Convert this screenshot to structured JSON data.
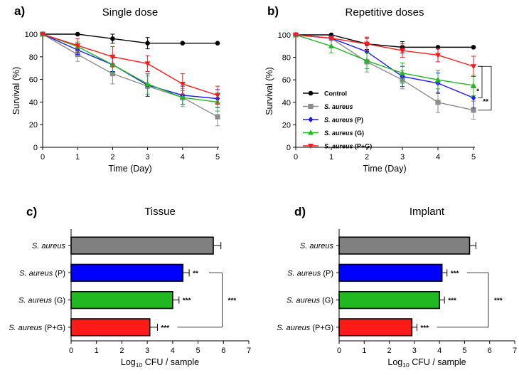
{
  "chart_data": [
    {
      "panel": "a)",
      "type": "line",
      "title": "Single dose",
      "xlabel": "Time (Day)",
      "ylabel": "Survival (%)",
      "x": [
        0,
        1,
        2,
        3,
        4,
        5
      ],
      "xlim": [
        0,
        5
      ],
      "ylim": [
        0,
        100
      ],
      "xticks": [
        "0",
        "1",
        "2",
        "3",
        "4",
        "5"
      ],
      "yticks": [
        "0",
        "20",
        "40",
        "60",
        "80",
        "100"
      ],
      "series": [
        {
          "name": "Control",
          "color": "#000000",
          "marker": "circle",
          "values": [
            100,
            100,
            96,
            92,
            92,
            92
          ],
          "err": [
            0,
            0,
            4,
            5,
            0,
            0
          ]
        },
        {
          "name": "S. aureus",
          "color": "#8c8c8c",
          "marker": "square",
          "values": [
            100,
            82,
            65,
            54,
            44,
            27
          ],
          "err": [
            0,
            6,
            9,
            9,
            8,
            8
          ]
        },
        {
          "name": "S. aureus (P)",
          "color": "#1a1aff",
          "marker": "diamond",
          "values": [
            100,
            86,
            73,
            55,
            46,
            43
          ],
          "err": [
            0,
            4,
            6,
            10,
            8,
            8
          ]
        },
        {
          "name": "S. aureus (G)",
          "color": "#22b822",
          "marker": "triangle-up",
          "values": [
            100,
            89,
            73,
            56,
            44,
            40
          ],
          "err": [
            0,
            4,
            7,
            9,
            6,
            8
          ]
        },
        {
          "name": "S. aureus (P+G)",
          "color": "#ff1a1a",
          "marker": "triangle-down",
          "values": [
            100,
            90,
            80,
            74,
            56,
            46
          ],
          "err": [
            0,
            6,
            9,
            7,
            9,
            8
          ]
        }
      ]
    },
    {
      "panel": "b)",
      "type": "line",
      "title": "Repetitive doses",
      "xlabel": "Time (Day)",
      "ylabel": "Survival (%)",
      "x": [
        0,
        1,
        2,
        3,
        4,
        5
      ],
      "xlim": [
        0,
        5
      ],
      "ylim": [
        0,
        100
      ],
      "xticks": [
        "0",
        "1",
        "2",
        "3",
        "4",
        "5"
      ],
      "yticks": [
        "0",
        "20",
        "40",
        "60",
        "80",
        "100"
      ],
      "series": [
        {
          "name": "Control",
          "color": "#000000",
          "marker": "circle",
          "values": [
            100,
            100,
            92,
            89,
            89,
            89
          ],
          "err": [
            0,
            0,
            5,
            5,
            0,
            0
          ]
        },
        {
          "name": "S. aureus",
          "color": "#8c8c8c",
          "marker": "square",
          "values": [
            100,
            97,
            76,
            60,
            40,
            33
          ],
          "err": [
            0,
            0,
            9,
            8,
            9,
            8
          ]
        },
        {
          "name": "S. aureus (P)",
          "color": "#1a1aff",
          "marker": "diamond",
          "values": [
            100,
            97,
            85,
            63,
            57,
            44
          ],
          "err": [
            0,
            0,
            8,
            9,
            9,
            9
          ]
        },
        {
          "name": "S. aureus (G)",
          "color": "#22b822",
          "marker": "triangle-up",
          "values": [
            100,
            90,
            77,
            66,
            60,
            55
          ],
          "err": [
            0,
            6,
            7,
            9,
            8,
            9
          ]
        },
        {
          "name": "S. aureus (P+G)",
          "color": "#ff1a1a",
          "marker": "triangle-down",
          "values": [
            100,
            97,
            92,
            86,
            82,
            72
          ],
          "err": [
            0,
            0,
            6,
            6,
            6,
            9
          ]
        }
      ],
      "legend": {
        "placement": "lower-left",
        "entries": [
          {
            "prefix": "Control",
            "italic": false,
            "suffix": ""
          },
          {
            "prefix": "S. aureus",
            "italic": true,
            "suffix": ""
          },
          {
            "prefix": "S. aureus",
            "italic": true,
            "suffix": " (P)"
          },
          {
            "prefix": "S. aureus",
            "italic": true,
            "suffix": " (G)"
          },
          {
            "prefix": "S. aureus",
            "italic": true,
            "suffix": " (P+G)"
          }
        ]
      },
      "significance": [
        {
          "between": [
            "S. aureus (P+G)",
            "S. aureus (P)"
          ],
          "label": "*"
        },
        {
          "between": [
            "S. aureus (P+G)",
            "S. aureus"
          ],
          "label": "**"
        }
      ]
    },
    {
      "panel": "c)",
      "type": "bar",
      "orientation": "horizontal",
      "title": "Tissue",
      "xlabel_main": "Log",
      "xlabel_sub": "10",
      "xlabel_rest": " CFU / sample",
      "xlim": [
        0,
        7
      ],
      "xticks": [
        "0",
        "1",
        "2",
        "3",
        "4",
        "5",
        "6",
        "7"
      ],
      "categories": [
        {
          "italic": "S. aureus",
          "suffix": ""
        },
        {
          "italic": "S. aureus",
          "suffix": " (P)"
        },
        {
          "italic": "S. aureus",
          "suffix": " (G)"
        },
        {
          "italic": "S. aureus",
          "suffix": " (P+G)"
        }
      ],
      "values": [
        5.6,
        4.4,
        4.0,
        3.1
      ],
      "err": [
        0.3,
        0.25,
        0.25,
        0.3
      ],
      "colors": [
        "#808080",
        "#0000ff",
        "#22b822",
        "#ff1a1a"
      ],
      "bar_labels": [
        "",
        "**",
        "***",
        "***"
      ],
      "bracket_label": "***"
    },
    {
      "panel": "d)",
      "type": "bar",
      "orientation": "horizontal",
      "title": "Implant",
      "xlabel_main": "Log",
      "xlabel_sub": "10",
      "xlabel_rest": " CFU / sample",
      "xlim": [
        0,
        7
      ],
      "xticks": [
        "0",
        "1",
        "2",
        "3",
        "4",
        "5",
        "6",
        "7"
      ],
      "categories": [
        {
          "italic": "S. aureus",
          "suffix": ""
        },
        {
          "italic": "S. aureus",
          "suffix": " (P)"
        },
        {
          "italic": "S. aureus",
          "suffix": " (G)"
        },
        {
          "italic": "S. aureus",
          "suffix": " (P+G)"
        }
      ],
      "values": [
        5.2,
        4.1,
        4.0,
        2.9
      ],
      "err": [
        0.25,
        0.2,
        0.2,
        0.2
      ],
      "colors": [
        "#808080",
        "#0000ff",
        "#22b822",
        "#ff1a1a"
      ],
      "bar_labels": [
        "",
        "***",
        "***",
        "***"
      ],
      "bracket_label": "***"
    }
  ]
}
